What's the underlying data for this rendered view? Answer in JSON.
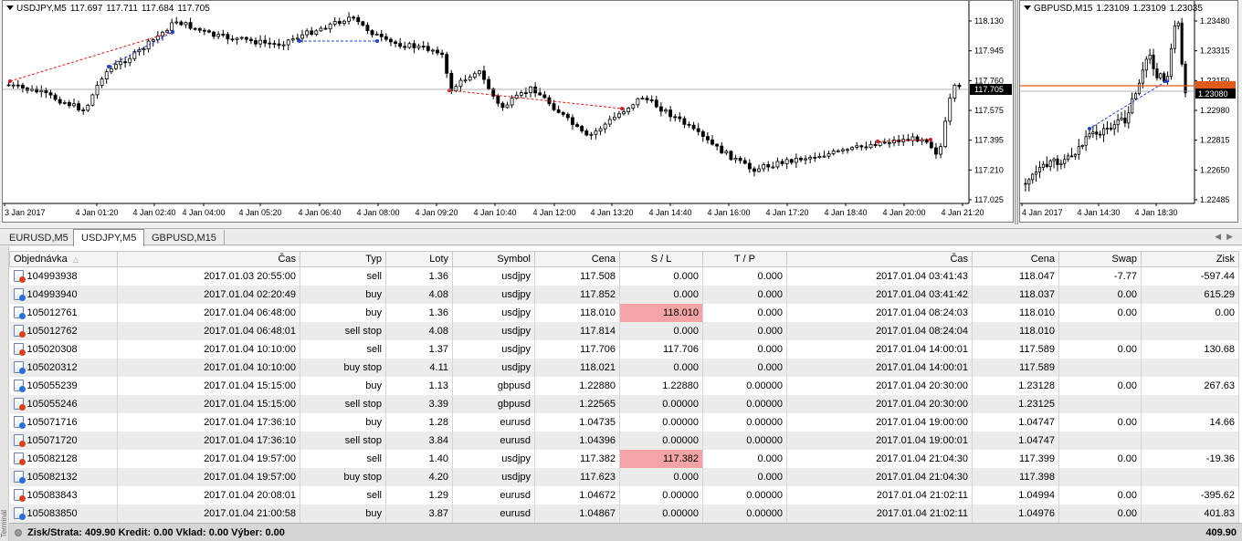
{
  "chart1": {
    "symbol": "USDJPY,M5",
    "open": "117.697",
    "high": "117.711",
    "low": "117.684",
    "close": "117.705",
    "price_levels": [
      "118.130",
      "117.945",
      "117.760",
      "117.575",
      "117.395",
      "117.210",
      "117.025"
    ],
    "current_price": "117.705",
    "time_labels": [
      "3 Jan 2017",
      "4 Jan 01:20",
      "4 Jan 02:40",
      "4 Jan 04:00",
      "4 Jan 05:20",
      "4 Jan 06:40",
      "4 Jan 08:00",
      "4 Jan 09:20",
      "4 Jan 10:40",
      "4 Jan 12:00",
      "4 Jan 13:20",
      "4 Jan 14:40",
      "4 Jan 16:00",
      "4 Jan 17:20",
      "4 Jan 18:40",
      "4 Jan 20:00",
      "4 Jan 21:20"
    ]
  },
  "chart2": {
    "symbol": "GBPUSD,M15",
    "open": "1.23109",
    "high": "1.23109",
    "low": "1.23035",
    "price_levels": [
      "1.23480",
      "1.23315",
      "1.23150",
      "1.22980",
      "1.22815",
      "1.22650",
      "1.22485"
    ],
    "current_price": "1.23080",
    "time_labels": [
      "4 Jan 2017",
      "4 Jan 14:30",
      "4 Jan 18:30"
    ]
  },
  "tabs": [
    "EURUSD,M5",
    "USDJPY,M5",
    "GBPUSD,M15"
  ],
  "active_tab": 1,
  "columns": [
    "Objednávka",
    "Čas",
    "Typ",
    "Loty",
    "Symbol",
    "Cena",
    "S / L",
    "T / P",
    "Čas",
    "Cena",
    "Swap",
    "Zisk"
  ],
  "rows": [
    {
      "order": "104993938",
      "time": "2017.01.03 20:55:00",
      "type": "sell",
      "lots": "1.36",
      "symbol": "usdjpy",
      "price": "117.508",
      "sl": "0.000",
      "tp": "0.000",
      "close_time": "2017.01.04 03:41:43",
      "close_price": "118.047",
      "swap": "-7.77",
      "profit": "-597.44",
      "side": "s",
      "sl_hl": false
    },
    {
      "order": "104993940",
      "time": "2017.01.04 02:20:49",
      "type": "buy",
      "lots": "4.08",
      "symbol": "usdjpy",
      "price": "117.852",
      "sl": "0.000",
      "tp": "0.000",
      "close_time": "2017.01.04 03:41:42",
      "close_price": "118.037",
      "swap": "0.00",
      "profit": "615.29",
      "side": "b",
      "sl_hl": false
    },
    {
      "order": "105012761",
      "time": "2017.01.04 06:48:00",
      "type": "buy",
      "lots": "1.36",
      "symbol": "usdjpy",
      "price": "118.010",
      "sl": "118.010",
      "tp": "0.000",
      "close_time": "2017.01.04 08:24:03",
      "close_price": "118.010",
      "swap": "0.00",
      "profit": "0.00",
      "side": "b",
      "sl_hl": true
    },
    {
      "order": "105012762",
      "time": "2017.01.04 06:48:01",
      "type": "sell stop",
      "lots": "4.08",
      "symbol": "usdjpy",
      "price": "117.814",
      "sl": "0.000",
      "tp": "0.000",
      "close_time": "2017.01.04 08:24:04",
      "close_price": "118.010",
      "swap": "",
      "profit": "",
      "side": "s",
      "sl_hl": false
    },
    {
      "order": "105020308",
      "time": "2017.01.04 10:10:00",
      "type": "sell",
      "lots": "1.37",
      "symbol": "usdjpy",
      "price": "117.706",
      "sl": "117.706",
      "tp": "0.000",
      "close_time": "2017.01.04 14:00:01",
      "close_price": "117.589",
      "swap": "0.00",
      "profit": "130.68",
      "side": "s",
      "sl_hl": false
    },
    {
      "order": "105020312",
      "time": "2017.01.04 10:10:00",
      "type": "buy stop",
      "lots": "4.11",
      "symbol": "usdjpy",
      "price": "118.021",
      "sl": "0.000",
      "tp": "0.000",
      "close_time": "2017.01.04 14:00:01",
      "close_price": "117.589",
      "swap": "",
      "profit": "",
      "side": "b",
      "sl_hl": false
    },
    {
      "order": "105055239",
      "time": "2017.01.04 15:15:00",
      "type": "buy",
      "lots": "1.13",
      "symbol": "gbpusd",
      "price": "1.22880",
      "sl": "1.22880",
      "tp": "0.00000",
      "close_time": "2017.01.04 20:30:00",
      "close_price": "1.23128",
      "swap": "0.00",
      "profit": "267.63",
      "side": "b",
      "sl_hl": false
    },
    {
      "order": "105055246",
      "time": "2017.01.04 15:15:00",
      "type": "sell stop",
      "lots": "3.39",
      "symbol": "gbpusd",
      "price": "1.22565",
      "sl": "0.00000",
      "tp": "0.00000",
      "close_time": "2017.01.04 20:30:00",
      "close_price": "1.23125",
      "swap": "",
      "profit": "",
      "side": "s",
      "sl_hl": false
    },
    {
      "order": "105071716",
      "time": "2017.01.04 17:36:10",
      "type": "buy",
      "lots": "1.28",
      "symbol": "eurusd",
      "price": "1.04735",
      "sl": "0.00000",
      "tp": "0.00000",
      "close_time": "2017.01.04 19:00:00",
      "close_price": "1.04747",
      "swap": "0.00",
      "profit": "14.66",
      "side": "b",
      "sl_hl": false
    },
    {
      "order": "105071720",
      "time": "2017.01.04 17:36:10",
      "type": "sell stop",
      "lots": "3.84",
      "symbol": "eurusd",
      "price": "1.04396",
      "sl": "0.00000",
      "tp": "0.00000",
      "close_time": "2017.01.04 19:00:01",
      "close_price": "1.04747",
      "swap": "",
      "profit": "",
      "side": "s",
      "sl_hl": false
    },
    {
      "order": "105082128",
      "time": "2017.01.04 19:57:00",
      "type": "sell",
      "lots": "1.40",
      "symbol": "usdjpy",
      "price": "117.382",
      "sl": "117.382",
      "tp": "0.000",
      "close_time": "2017.01.04 21:04:30",
      "close_price": "117.399",
      "swap": "0.00",
      "profit": "-19.36",
      "side": "s",
      "sl_hl": true
    },
    {
      "order": "105082132",
      "time": "2017.01.04 19:57:00",
      "type": "buy stop",
      "lots": "4.20",
      "symbol": "usdjpy",
      "price": "117.623",
      "sl": "0.000",
      "tp": "0.000",
      "close_time": "2017.01.04 21:04:30",
      "close_price": "117.398",
      "swap": "",
      "profit": "",
      "side": "b",
      "sl_hl": false
    },
    {
      "order": "105083843",
      "time": "2017.01.04 20:08:01",
      "type": "sell",
      "lots": "1.29",
      "symbol": "eurusd",
      "price": "1.04672",
      "sl": "0.00000",
      "tp": "0.00000",
      "close_time": "2017.01.04 21:02:11",
      "close_price": "1.04994",
      "swap": "0.00",
      "profit": "-395.62",
      "side": "s",
      "sl_hl": false
    },
    {
      "order": "105083850",
      "time": "2017.01.04 21:00:58",
      "type": "buy",
      "lots": "3.87",
      "symbol": "eurusd",
      "price": "1.04867",
      "sl": "0.00000",
      "tp": "0.00000",
      "close_time": "2017.01.04 21:02:11",
      "close_price": "1.04976",
      "swap": "0.00",
      "profit": "401.83",
      "side": "b",
      "sl_hl": false
    }
  ],
  "footer": {
    "summary": "Zisk/Strata: 409.90  Kredit: 0.00  Vklad: 0.00  Výber: 0.00",
    "total": "409.90"
  },
  "colors": {
    "bull": "#000000",
    "bear": "#000000",
    "buy_marker": "#1f3fd0",
    "sell_marker": "#d81e1e",
    "price_line": "#9a9a9a",
    "sl_highlight": "#f4a4a4",
    "gbp_line": "#e05a1e"
  }
}
